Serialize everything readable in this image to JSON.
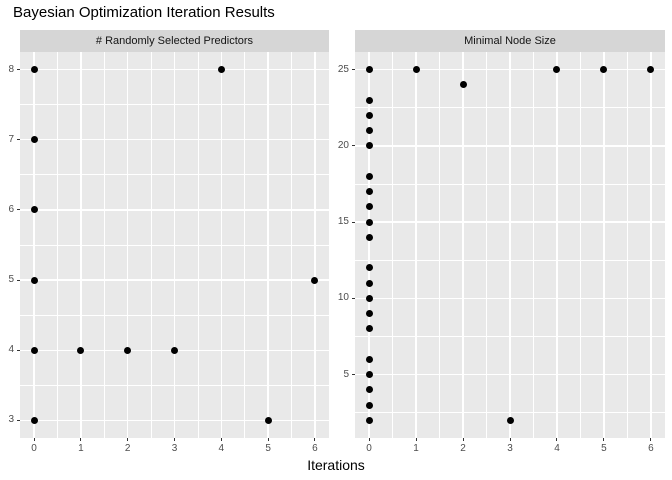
{
  "title": "Bayesian Optimization Iteration Results",
  "chart_data": {
    "type": "scatter",
    "title": "Bayesian Optimization Iteration Results",
    "xlabel": "Iterations",
    "ylabel": "",
    "xlim": [
      0,
      6
    ],
    "x_ticks": [
      0,
      1,
      2,
      3,
      4,
      5,
      6
    ],
    "grid": true,
    "minor_grid": true,
    "legend": "none",
    "style": "ggplot2-facets",
    "colors": {
      "panel_background": "#e9e9e9",
      "strip_background": "#d6d6d6",
      "gridline": "#ffffff",
      "point": "#000000",
      "axis_text": "#4d4d4d",
      "tick_mark": "#333333",
      "title_text": "#000000"
    },
    "panels": [
      {
        "strip_label": "# Randomly Selected Predictors",
        "ylim": [
          3,
          8
        ],
        "y_ticks": [
          3,
          4,
          5,
          6,
          7,
          8
        ],
        "points": [
          [
            0,
            8
          ],
          [
            0,
            7
          ],
          [
            0,
            6
          ],
          [
            0,
            5
          ],
          [
            0,
            4
          ],
          [
            0,
            3
          ],
          [
            1,
            4
          ],
          [
            2,
            4
          ],
          [
            3,
            4
          ],
          [
            4,
            8
          ],
          [
            5,
            3
          ],
          [
            6,
            5
          ]
        ]
      },
      {
        "strip_label": "Minimal Node Size",
        "ylim": [
          2,
          25
        ],
        "y_ticks": [
          5,
          10,
          15,
          20,
          25
        ],
        "points": [
          [
            0,
            25
          ],
          [
            0,
            23
          ],
          [
            0,
            22
          ],
          [
            0,
            21
          ],
          [
            0,
            20
          ],
          [
            0,
            18
          ],
          [
            0,
            17
          ],
          [
            0,
            16
          ],
          [
            0,
            15
          ],
          [
            0,
            14
          ],
          [
            0,
            12
          ],
          [
            0,
            11
          ],
          [
            0,
            10
          ],
          [
            0,
            9
          ],
          [
            0,
            8
          ],
          [
            0,
            6
          ],
          [
            0,
            5
          ],
          [
            0,
            4
          ],
          [
            0,
            3
          ],
          [
            0,
            2
          ],
          [
            1,
            25
          ],
          [
            2,
            24
          ],
          [
            3,
            2
          ],
          [
            4,
            25
          ],
          [
            5,
            25
          ],
          [
            6,
            25
          ]
        ]
      }
    ]
  }
}
